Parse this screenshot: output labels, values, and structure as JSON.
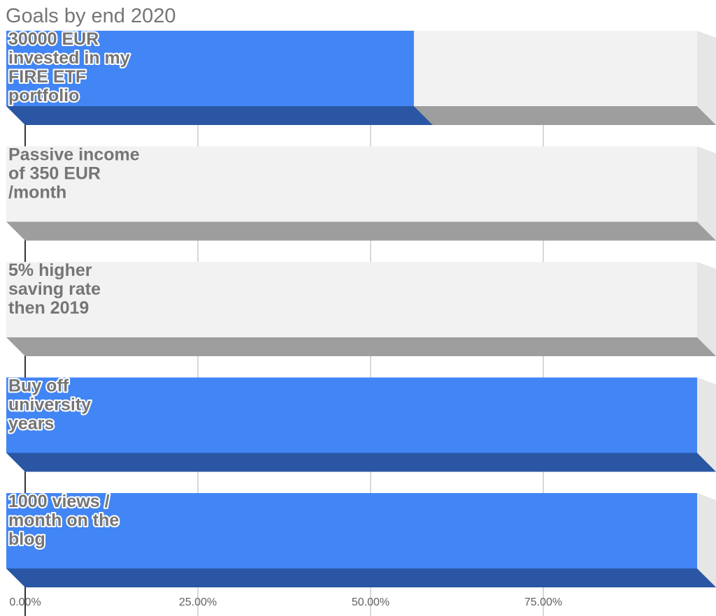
{
  "chart_data": {
    "type": "bar",
    "orientation": "horizontal",
    "style": "3d",
    "title": "Goals by end 2020",
    "categories": [
      "30000 EUR invested in my FIRE ETF portfolio",
      "Passive income of 350 EUR /month",
      "5% higher saving rate then 2019",
      "Buy off university years",
      "1000 views / month on the blog"
    ],
    "category_lines": [
      [
        "30000 EUR",
        "invested in my",
        "FIRE ETF",
        "portfolio"
      ],
      [
        "Passive income",
        "of 350 EUR",
        "/month"
      ],
      [
        "5% higher",
        "saving rate",
        "then 2019"
      ],
      [
        "Buy off",
        "university",
        "years"
      ],
      [
        "1000 views /",
        "month on the",
        "blog"
      ]
    ],
    "series": [
      {
        "values": [
          0.59,
          0,
          0,
          1.0,
          1.0
        ]
      }
    ],
    "xlim": [
      0,
      1
    ],
    "xticks": [
      0,
      0.25,
      0.5,
      0.75
    ],
    "xtick_labels": [
      "0.00%",
      "25.00%",
      "50.00%",
      "75.00%"
    ],
    "grid": true,
    "legend": "none",
    "colors": {
      "bar_front": "#4285f4",
      "bar_bottom": "#2a56a3",
      "track_front": "#f2f2f2",
      "track_bottom": "#9e9e9e",
      "track_side": "#e6e6e6",
      "gridline": "#cccccc",
      "baseline": "#333333"
    }
  }
}
